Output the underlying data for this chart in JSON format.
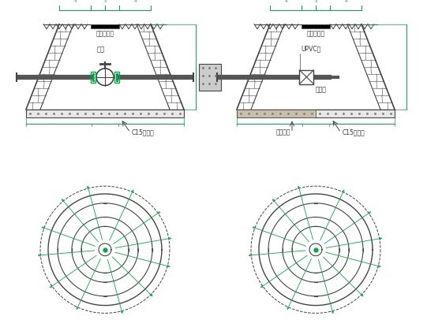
{
  "bg_color": "#ffffff",
  "line_color": "#444444",
  "green_color": "#00aa44",
  "text_color": "#333333",
  "label_gate": "闸阀",
  "label_lid": "预制砼井盖",
  "label_c15": "C15砼垫层",
  "label_upvc": "UPVC管",
  "label_drain": "排水阀",
  "label_gravel": "卵石垫层",
  "label_c15b": "C15砼垫层"
}
